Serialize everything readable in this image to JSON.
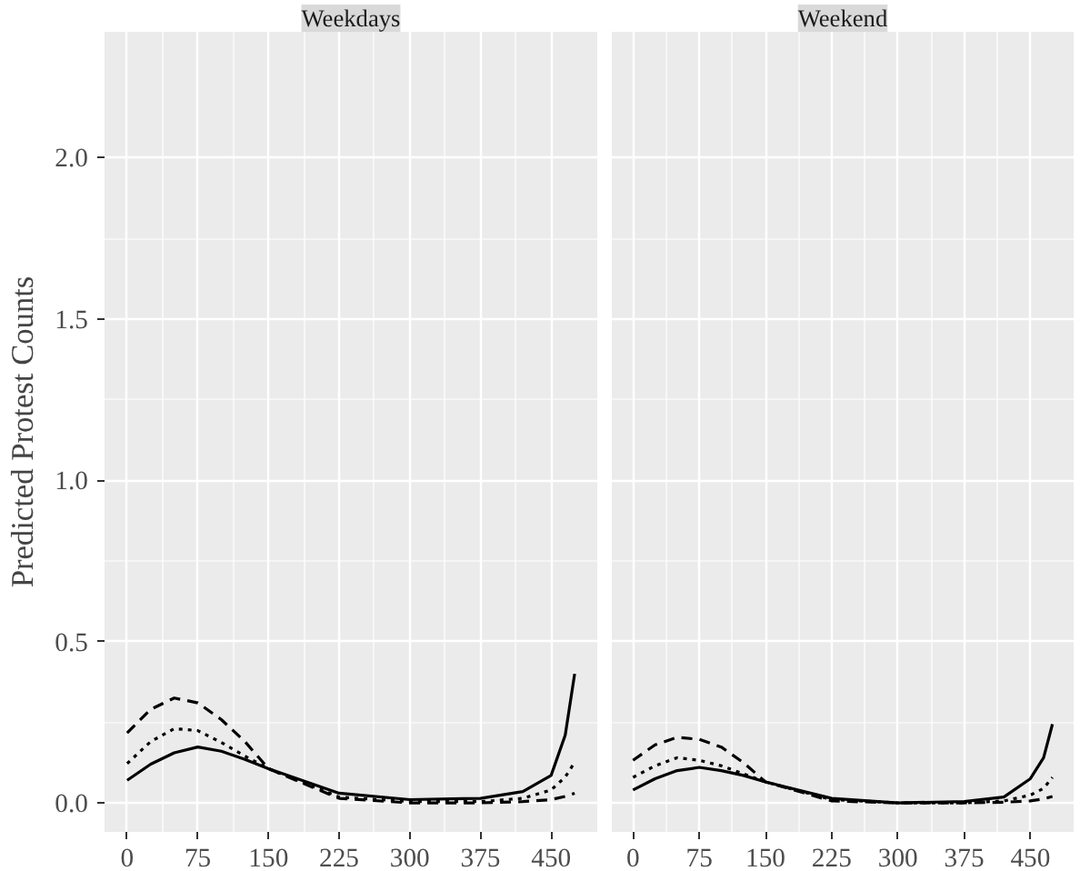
{
  "chart_data": [
    {
      "type": "line",
      "title": "Weekdays",
      "ylabel": "Predicted Protest Counts",
      "xlim": [
        -24,
        499
      ],
      "ylim": [
        -0.09,
        2.39
      ],
      "xticks": [
        0,
        75,
        150,
        225,
        300,
        375,
        450
      ],
      "yticks": [
        {
          "value": 0,
          "label": "0.0"
        },
        {
          "value": 0.5,
          "label": "0.5"
        },
        {
          "value": 1,
          "label": "1.0"
        },
        {
          "value": 1.5,
          "label": "1.5"
        },
        {
          "value": 2,
          "label": "2.0"
        }
      ],
      "grid": true,
      "x": [
        0,
        25,
        50,
        75,
        100,
        125,
        150,
        225,
        300,
        375,
        420,
        450,
        465,
        475
      ],
      "series": [
        {
          "color": "#000000",
          "line_style": "solid",
          "values": [
            0.07,
            0.12,
            0.155,
            0.173,
            0.16,
            0.135,
            0.106,
            0.03,
            0.01,
            0.014,
            0.035,
            0.085,
            0.21,
            0.4
          ]
        },
        {
          "color": "#000000",
          "line_style": "dotted",
          "values": [
            0.122,
            0.19,
            0.23,
            0.224,
            0.187,
            0.145,
            0.106,
            0.018,
            0.004,
            0.004,
            0.014,
            0.04,
            0.08,
            0.126
          ]
        },
        {
          "color": "#000000",
          "line_style": "dashed",
          "values": [
            0.217,
            0.29,
            0.325,
            0.31,
            0.258,
            0.19,
            0.106,
            0.014,
            0.0,
            0.0,
            0.004,
            0.01,
            0.02,
            0.03
          ]
        }
      ]
    },
    {
      "type": "line",
      "title": "Weekend",
      "xlim": [
        -24,
        499
      ],
      "ylim": [
        -0.09,
        2.39
      ],
      "xticks": [
        0,
        75,
        150,
        225,
        300,
        375,
        450
      ],
      "yticks": [
        0,
        0.5,
        1,
        1.5,
        2
      ],
      "grid": true,
      "tick_labels": "x",
      "x": [
        0,
        25,
        50,
        75,
        100,
        125,
        150,
        225,
        300,
        375,
        420,
        450,
        465,
        475
      ],
      "series": [
        {
          "color": "#000000",
          "line_style": "solid",
          "values": [
            0.04,
            0.075,
            0.1,
            0.11,
            0.1,
            0.085,
            0.065,
            0.014,
            0.0,
            0.004,
            0.018,
            0.075,
            0.14,
            0.244
          ]
        },
        {
          "color": "#000000",
          "line_style": "dotted",
          "values": [
            0.079,
            0.115,
            0.14,
            0.132,
            0.115,
            0.09,
            0.065,
            0.01,
            0.0,
            0.0,
            0.006,
            0.024,
            0.045,
            0.079
          ]
        },
        {
          "color": "#000000",
          "line_style": "dashed",
          "values": [
            0.132,
            0.18,
            0.203,
            0.197,
            0.173,
            0.125,
            0.065,
            0.006,
            0.0,
            0.0,
            0.002,
            0.006,
            0.012,
            0.02
          ]
        }
      ]
    }
  ]
}
